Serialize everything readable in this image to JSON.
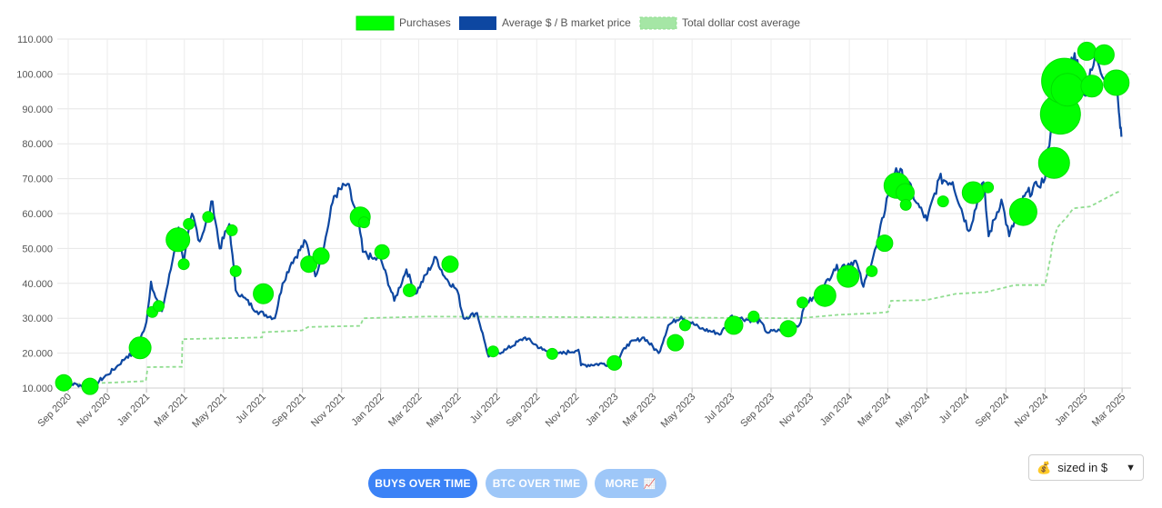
{
  "chart_data": {
    "type": "line",
    "legend": {
      "position": "top-center",
      "items": [
        {
          "name": "Purchases",
          "color": "#00ff00"
        },
        {
          "name": "Average $ / B market price",
          "color": "#0d47a1"
        },
        {
          "name": "Total dollar cost average",
          "color": "#90dd90"
        }
      ]
    },
    "y_ticks": [
      "10.000",
      "20.000",
      "30.000",
      "40.000",
      "50.000",
      "60.000",
      "70.000",
      "80.000",
      "90.000",
      "100.000",
      "110.000"
    ],
    "x_ticks": [
      "Sep 2020",
      "Nov 2020",
      "Jan 2021",
      "Mar 2021",
      "May 2021",
      "Jul 2021",
      "Sep 2021",
      "Nov 2021",
      "Jan 2022",
      "Mar 2022",
      "May 2022",
      "Jul 2022",
      "Sep 2022",
      "Nov 2022",
      "Jan 2023",
      "Mar 2023",
      "May 2023",
      "Jul 2023",
      "Sep 2023",
      "Nov 2023",
      "Jan 2024",
      "Mar 2024",
      "May 2024",
      "Jul 2024",
      "Sep 2024",
      "Nov 2024",
      "Jan 2025",
      "Mar 2025"
    ],
    "ylim": [
      10000,
      110000
    ],
    "xlim": [
      "2020-08-15",
      "2025-03-15"
    ],
    "grid": true,
    "series": [
      {
        "name": "Average $ / B market price",
        "color": "#0d47a1",
        "points": [
          [
            "2020-08-15",
            11500
          ],
          [
            "2020-09-15",
            11000
          ],
          [
            "2020-10-01",
            10600
          ],
          [
            "2020-10-15",
            11500
          ],
          [
            "2020-11-01",
            13800
          ],
          [
            "2020-11-15",
            16000
          ],
          [
            "2020-12-01",
            19000
          ],
          [
            "2020-12-15",
            20000
          ],
          [
            "2021-01-01",
            29000
          ],
          [
            "2021-01-08",
            40500
          ],
          [
            "2021-01-15",
            36000
          ],
          [
            "2021-01-25",
            32000
          ],
          [
            "2021-02-08",
            44000
          ],
          [
            "2021-02-20",
            56000
          ],
          [
            "2021-02-28",
            46000
          ],
          [
            "2021-03-13",
            60000
          ],
          [
            "2021-03-25",
            52000
          ],
          [
            "2021-04-14",
            63500
          ],
          [
            "2021-04-25",
            50000
          ],
          [
            "2021-05-10",
            57000
          ],
          [
            "2021-05-20",
            38000
          ],
          [
            "2021-06-01",
            36000
          ],
          [
            "2021-06-22",
            32000
          ],
          [
            "2021-07-20",
            30000
          ],
          [
            "2021-08-01",
            40000
          ],
          [
            "2021-08-15",
            46000
          ],
          [
            "2021-09-06",
            52000
          ],
          [
            "2021-09-21",
            42000
          ],
          [
            "2021-10-05",
            51000
          ],
          [
            "2021-10-20",
            65000
          ],
          [
            "2021-11-10",
            68500
          ],
          [
            "2021-11-28",
            57000
          ],
          [
            "2021-12-04",
            49000
          ],
          [
            "2021-12-20",
            47000
          ],
          [
            "2022-01-01",
            47000
          ],
          [
            "2022-01-22",
            35000
          ],
          [
            "2022-02-10",
            44000
          ],
          [
            "2022-02-24",
            37000
          ],
          [
            "2022-03-28",
            47500
          ],
          [
            "2022-04-10",
            42000
          ],
          [
            "2022-04-30",
            38000
          ],
          [
            "2022-05-10",
            30000
          ],
          [
            "2022-05-31",
            31500
          ],
          [
            "2022-06-13",
            22500
          ],
          [
            "2022-06-18",
            19000
          ],
          [
            "2022-07-15",
            21000
          ],
          [
            "2022-08-14",
            24500
          ],
          [
            "2022-09-10",
            21000
          ],
          [
            "2022-10-01",
            19500
          ],
          [
            "2022-11-05",
            21000
          ],
          [
            "2022-11-09",
            16500
          ],
          [
            "2022-12-15",
            17000
          ],
          [
            "2023-01-01",
            16600
          ],
          [
            "2023-01-20",
            22500
          ],
          [
            "2023-02-15",
            24500
          ],
          [
            "2023-03-10",
            20000
          ],
          [
            "2023-03-25",
            28000
          ],
          [
            "2023-04-14",
            30500
          ],
          [
            "2023-05-15",
            27000
          ],
          [
            "2023-06-15",
            25500
          ],
          [
            "2023-06-30",
            30500
          ],
          [
            "2023-07-15",
            30000
          ],
          [
            "2023-08-16",
            29000
          ],
          [
            "2023-08-25",
            26000
          ],
          [
            "2023-09-15",
            26500
          ],
          [
            "2023-10-15",
            28000
          ],
          [
            "2023-10-25",
            34500
          ],
          [
            "2023-11-15",
            36500
          ],
          [
            "2023-12-08",
            44000
          ],
          [
            "2024-01-11",
            46500
          ],
          [
            "2024-01-23",
            39000
          ],
          [
            "2024-02-14",
            51500
          ],
          [
            "2024-03-04",
            68000
          ],
          [
            "2024-03-14",
            73000
          ],
          [
            "2024-04-01",
            69000
          ],
          [
            "2024-04-15",
            63000
          ],
          [
            "2024-05-01",
            58000
          ],
          [
            "2024-05-20",
            70000
          ],
          [
            "2024-06-10",
            69000
          ],
          [
            "2024-07-05",
            55000
          ],
          [
            "2024-07-28",
            69000
          ],
          [
            "2024-08-05",
            53500
          ],
          [
            "2024-08-25",
            64000
          ],
          [
            "2024-09-06",
            53500
          ],
          [
            "2024-09-30",
            65000
          ],
          [
            "2024-10-20",
            68000
          ],
          [
            "2024-11-01",
            70000
          ],
          [
            "2024-11-12",
            88000
          ],
          [
            "2024-11-22",
            98500
          ],
          [
            "2024-12-05",
            100000
          ],
          [
            "2024-12-17",
            106000
          ],
          [
            "2025-01-01",
            94000
          ],
          [
            "2025-01-20",
            105000
          ],
          [
            "2025-02-05",
            98000
          ],
          [
            "2025-02-21",
            97500
          ],
          [
            "2025-02-24",
            89000
          ],
          [
            "2025-02-26",
            84500
          ],
          [
            "2025-02-28",
            82000
          ]
        ]
      },
      {
        "name": "Total dollar cost average",
        "color": "#90dd90",
        "points": [
          [
            "2020-08-15",
            11500
          ],
          [
            "2020-09-15",
            11200
          ],
          [
            "2020-10-05",
            11300
          ],
          [
            "2020-10-15",
            11400
          ],
          [
            "2020-11-01",
            11500
          ],
          [
            "2020-11-25",
            11700
          ],
          [
            "2020-12-31",
            12000
          ],
          [
            "2021-01-03",
            16000
          ],
          [
            "2021-02-25",
            16100
          ],
          [
            "2021-02-26",
            24000
          ],
          [
            "2021-06-30",
            24500
          ],
          [
            "2021-07-01",
            26000
          ],
          [
            "2021-08-31",
            26500
          ],
          [
            "2021-09-10",
            27500
          ],
          [
            "2021-11-30",
            27800
          ],
          [
            "2021-12-05",
            30000
          ],
          [
            "2022-03-15",
            30500
          ],
          [
            "2023-03-12",
            30200
          ],
          [
            "2023-10-15",
            30000
          ],
          [
            "2023-12-15",
            31000
          ],
          [
            "2024-02-15",
            31500
          ],
          [
            "2024-03-01",
            31800
          ],
          [
            "2024-03-06",
            35000
          ],
          [
            "2024-04-30",
            35200
          ],
          [
            "2024-06-15",
            37000
          ],
          [
            "2024-08-01",
            37500
          ],
          [
            "2024-09-15",
            39500
          ],
          [
            "2024-11-01",
            39500
          ],
          [
            "2024-11-10",
            48000
          ],
          [
            "2024-11-12",
            51000
          ],
          [
            "2024-11-20",
            56000
          ],
          [
            "2024-12-05",
            59000
          ],
          [
            "2024-12-15",
            61500
          ],
          [
            "2025-01-10",
            62000
          ],
          [
            "2025-02-20",
            66000
          ],
          [
            "2025-02-28",
            66500
          ]
        ]
      }
    ],
    "purchases": {
      "name": "Purchases",
      "color": "#00ff00",
      "points": [
        {
          "date": "2020-08-25",
          "price": 11500,
          "amount": 9
        },
        {
          "date": "2020-10-05",
          "price": 10500,
          "amount": 9
        },
        {
          "date": "2020-12-22",
          "price": 21500,
          "amount": 12
        },
        {
          "date": "2021-01-10",
          "price": 31800,
          "amount": 6
        },
        {
          "date": "2021-01-20",
          "price": 33500,
          "amount": 6
        },
        {
          "date": "2021-02-19",
          "price": 52500,
          "amount": 13
        },
        {
          "date": "2021-02-28",
          "price": 45500,
          "amount": 6
        },
        {
          "date": "2021-03-08",
          "price": 57000,
          "amount": 6
        },
        {
          "date": "2021-04-07",
          "price": 59000,
          "amount": 6
        },
        {
          "date": "2021-05-14",
          "price": 55200,
          "amount": 6
        },
        {
          "date": "2021-05-20",
          "price": 43500,
          "amount": 6
        },
        {
          "date": "2021-07-02",
          "price": 37000,
          "amount": 11
        },
        {
          "date": "2021-09-11",
          "price": 45500,
          "amount": 9
        },
        {
          "date": "2021-09-30",
          "price": 47800,
          "amount": 9
        },
        {
          "date": "2021-11-30",
          "price": 59000,
          "amount": 11
        },
        {
          "date": "2021-12-06",
          "price": 57500,
          "amount": 6
        },
        {
          "date": "2022-01-03",
          "price": 49000,
          "amount": 8
        },
        {
          "date": "2022-02-15",
          "price": 38000,
          "amount": 7
        },
        {
          "date": "2022-04-19",
          "price": 45500,
          "amount": 9
        },
        {
          "date": "2022-06-25",
          "price": 20500,
          "amount": 6
        },
        {
          "date": "2022-09-25",
          "price": 19800,
          "amount": 6
        },
        {
          "date": "2022-12-31",
          "price": 17200,
          "amount": 8
        },
        {
          "date": "2023-04-05",
          "price": 23000,
          "amount": 9
        },
        {
          "date": "2023-04-20",
          "price": 28000,
          "amount": 6
        },
        {
          "date": "2023-07-05",
          "price": 28000,
          "amount": 10
        },
        {
          "date": "2023-08-05",
          "price": 30500,
          "amount": 6
        },
        {
          "date": "2023-09-28",
          "price": 27000,
          "amount": 9
        },
        {
          "date": "2023-10-20",
          "price": 34500,
          "amount": 6
        },
        {
          "date": "2023-11-24",
          "price": 36500,
          "amount": 12
        },
        {
          "date": "2023-12-30",
          "price": 42000,
          "amount": 12
        },
        {
          "date": "2024-02-05",
          "price": 43500,
          "amount": 6
        },
        {
          "date": "2024-02-25",
          "price": 51500,
          "amount": 9
        },
        {
          "date": "2024-03-15",
          "price": 68000,
          "amount": 14
        },
        {
          "date": "2024-03-28",
          "price": 66000,
          "amount": 10
        },
        {
          "date": "2024-03-29",
          "price": 62500,
          "amount": 6
        },
        {
          "date": "2024-05-26",
          "price": 63500,
          "amount": 6
        },
        {
          "date": "2024-07-12",
          "price": 66000,
          "amount": 12
        },
        {
          "date": "2024-08-04",
          "price": 67500,
          "amount": 6
        },
        {
          "date": "2024-09-28",
          "price": 60500,
          "amount": 15
        },
        {
          "date": "2024-11-15",
          "price": 74500,
          "amount": 17
        },
        {
          "date": "2024-11-25",
          "price": 88500,
          "amount": 22
        },
        {
          "date": "2024-12-01",
          "price": 98000,
          "amount": 25
        },
        {
          "date": "2024-12-06",
          "price": 95500,
          "amount": 18
        },
        {
          "date": "2025-01-05",
          "price": 106500,
          "amount": 10
        },
        {
          "date": "2025-01-13",
          "price": 96500,
          "amount": 12
        },
        {
          "date": "2025-02-01",
          "price": 105500,
          "amount": 11
        },
        {
          "date": "2025-02-20",
          "price": 97500,
          "amount": 14
        }
      ]
    }
  },
  "buttons": {
    "buys_over_time": "BUYS OVER TIME",
    "btc_over_time": "BTC OVER TIME",
    "more": "MORE",
    "more_icon": "chart-icon"
  },
  "size_select": {
    "icon": "money-bag-icon",
    "value": "sized in $"
  }
}
